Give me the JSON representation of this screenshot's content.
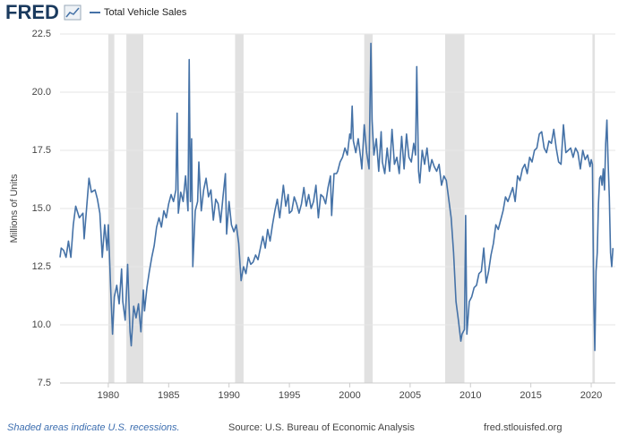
{
  "brand": "FRED",
  "footer": {
    "note": "Shaded areas indicate U.S. recessions.",
    "source": "Source: U.S. Bureau of Economic Analysis",
    "site": "fred.stlouisfed.org"
  },
  "chart_data": {
    "type": "line",
    "ylabel": "Millions of Units",
    "xlim": [
      1976,
      2022
    ],
    "ylim": [
      7.5,
      22.5
    ],
    "xticks": [
      1980,
      1985,
      1990,
      1995,
      2000,
      2005,
      2010,
      2015,
      2020
    ],
    "yticks": [
      7.5,
      {
        "value": 10,
        "label": "10.0"
      },
      12.5,
      {
        "value": 15,
        "label": "15.0"
      },
      17.5,
      {
        "value": 20,
        "label": "20.0"
      },
      22.5
    ],
    "grid": true,
    "recessions": [
      [
        1980.0,
        1980.5
      ],
      [
        1981.5,
        1982.9
      ],
      [
        1990.5,
        1991.2
      ],
      [
        2001.2,
        2001.9
      ],
      [
        2007.9,
        2009.5
      ],
      [
        2020.1,
        2020.3
      ]
    ],
    "recession_color": "#e1e1e1",
    "x": [
      1976.0,
      1976.1,
      1976.3,
      1976.5,
      1976.7,
      1976.9,
      1977.1,
      1977.3,
      1977.6,
      1977.9,
      1978.0,
      1978.2,
      1978.4,
      1978.6,
      1978.9,
      1979.1,
      1979.3,
      1979.5,
      1979.7,
      1979.9,
      1980.0,
      1980.2,
      1980.35,
      1980.5,
      1980.7,
      1980.9,
      1981.1,
      1981.2,
      1981.4,
      1981.6,
      1981.8,
      1981.9,
      1982.1,
      1982.3,
      1982.5,
      1982.7,
      1982.9,
      1983.0,
      1983.2,
      1983.4,
      1983.6,
      1983.8,
      1984.0,
      1984.2,
      1984.4,
      1984.6,
      1984.8,
      1985.0,
      1985.2,
      1985.4,
      1985.6,
      1985.7,
      1985.8,
      1986.0,
      1986.2,
      1986.4,
      1986.6,
      1986.7,
      1986.8,
      1986.9,
      1987.0,
      1987.2,
      1987.4,
      1987.5,
      1987.7,
      1987.9,
      1988.1,
      1988.3,
      1988.5,
      1988.7,
      1988.9,
      1989.1,
      1989.3,
      1989.5,
      1989.7,
      1989.8,
      1990.0,
      1990.2,
      1990.4,
      1990.6,
      1990.8,
      1991.0,
      1991.2,
      1991.4,
      1991.6,
      1991.8,
      1992.0,
      1992.2,
      1992.4,
      1992.6,
      1992.8,
      1993.0,
      1993.2,
      1993.4,
      1993.6,
      1993.8,
      1994.0,
      1994.2,
      1994.4,
      1994.5,
      1994.7,
      1994.9,
      1995.0,
      1995.2,
      1995.4,
      1995.6,
      1995.8,
      1996.0,
      1996.2,
      1996.4,
      1996.6,
      1996.8,
      1997.0,
      1997.2,
      1997.4,
      1997.6,
      1997.8,
      1998.0,
      1998.2,
      1998.4,
      1998.5,
      1998.7,
      1998.9,
      1999.0,
      1999.2,
      1999.4,
      1999.6,
      1999.8,
      2000.0,
      2000.1,
      2000.2,
      2000.3,
      2000.5,
      2000.7,
      2000.9,
      2001.0,
      2001.2,
      2001.4,
      2001.6,
      2001.75,
      2001.85,
      2002.0,
      2002.2,
      2002.4,
      2002.6,
      2002.7,
      2002.9,
      2003.1,
      2003.3,
      2003.5,
      2003.7,
      2003.9,
      2004.1,
      2004.3,
      2004.5,
      2004.7,
      2004.9,
      2005.1,
      2005.3,
      2005.45,
      2005.55,
      2005.7,
      2005.8,
      2006.0,
      2006.2,
      2006.4,
      2006.6,
      2006.8,
      2007.0,
      2007.2,
      2007.4,
      2007.6,
      2007.8,
      2008.0,
      2008.2,
      2008.4,
      2008.6,
      2008.8,
      2009.0,
      2009.2,
      2009.3,
      2009.5,
      2009.6,
      2009.7,
      2009.9,
      2010.1,
      2010.3,
      2010.5,
      2010.7,
      2010.9,
      2011.1,
      2011.3,
      2011.5,
      2011.7,
      2011.9,
      2012.1,
      2012.3,
      2012.5,
      2012.7,
      2012.9,
      2013.1,
      2013.3,
      2013.5,
      2013.7,
      2013.9,
      2014.1,
      2014.3,
      2014.5,
      2014.7,
      2014.9,
      2015.1,
      2015.3,
      2015.5,
      2015.7,
      2015.9,
      2016.1,
      2016.3,
      2016.5,
      2016.7,
      2016.9,
      2017.1,
      2017.3,
      2017.5,
      2017.7,
      2017.9,
      2018.1,
      2018.3,
      2018.5,
      2018.7,
      2018.9,
      2019.1,
      2019.3,
      2019.5,
      2019.7,
      2019.9,
      2020.0,
      2020.1,
      2020.2,
      2020.3,
      2020.4,
      2020.5,
      2020.6,
      2020.7,
      2020.8,
      2020.9,
      2021.0,
      2021.1,
      2021.2,
      2021.3,
      2021.4,
      2021.5,
      2021.6,
      2021.7,
      2021.8
    ],
    "series": [
      {
        "name": "Total Vehicle Sales",
        "color": "#4572a7",
        "values": [
          12.9,
          13.3,
          13.2,
          12.9,
          13.6,
          12.9,
          14.3,
          15.1,
          14.6,
          14.8,
          13.7,
          15.0,
          16.3,
          15.7,
          15.8,
          15.4,
          14.8,
          12.9,
          14.3,
          13.2,
          14.3,
          11.5,
          9.6,
          11.2,
          11.7,
          10.9,
          12.4,
          11.0,
          10.2,
          12.6,
          9.7,
          9.1,
          10.8,
          10.3,
          10.9,
          9.7,
          11.5,
          10.6,
          11.6,
          12.3,
          12.9,
          13.4,
          14.2,
          14.6,
          14.2,
          14.9,
          14.6,
          15.2,
          15.6,
          15.3,
          15.8,
          19.1,
          14.8,
          15.7,
          15.3,
          16.4,
          14.9,
          21.4,
          15.3,
          18.0,
          12.5,
          14.9,
          15.3,
          17.0,
          14.9,
          15.8,
          16.3,
          15.5,
          15.8,
          14.5,
          15.4,
          15.2,
          14.4,
          15.5,
          16.5,
          13.9,
          15.3,
          14.3,
          14.0,
          14.3,
          13.5,
          11.9,
          12.5,
          12.2,
          12.9,
          12.6,
          12.7,
          13.0,
          12.8,
          13.3,
          13.8,
          13.3,
          14.1,
          13.6,
          14.3,
          14.9,
          15.4,
          14.6,
          15.5,
          16.0,
          15.1,
          15.6,
          14.8,
          14.9,
          15.5,
          15.2,
          14.8,
          15.2,
          15.9,
          15.1,
          15.6,
          15.0,
          15.3,
          16.0,
          14.6,
          15.6,
          15.5,
          15.2,
          15.9,
          16.4,
          14.7,
          16.5,
          16.5,
          16.6,
          17.0,
          17.2,
          17.6,
          17.3,
          18.2,
          18.0,
          19.4,
          17.9,
          17.4,
          18.0,
          17.2,
          16.7,
          18.6,
          17.4,
          16.7,
          22.1,
          18.8,
          17.3,
          18.0,
          16.6,
          18.3,
          17.0,
          16.5,
          17.6,
          16.6,
          18.4,
          16.9,
          17.2,
          16.5,
          18.1,
          16.7,
          18.2,
          17.2,
          17.0,
          17.8,
          17.3,
          21.1,
          16.6,
          16.1,
          17.5,
          16.9,
          17.6,
          16.6,
          17.1,
          16.8,
          16.6,
          16.9,
          16.0,
          16.4,
          16.2,
          15.4,
          14.6,
          13.1,
          11.0,
          10.2,
          9.3,
          9.6,
          9.8,
          14.7,
          9.6,
          11.0,
          11.2,
          11.6,
          11.7,
          12.2,
          12.3,
          13.3,
          11.8,
          12.3,
          13.0,
          13.5,
          14.3,
          14.1,
          14.5,
          14.9,
          15.5,
          15.3,
          15.6,
          15.9,
          15.3,
          16.4,
          16.2,
          16.7,
          16.9,
          16.5,
          17.2,
          17.0,
          17.5,
          17.6,
          18.2,
          18.3,
          17.6,
          17.4,
          17.9,
          17.8,
          18.4,
          17.6,
          17.0,
          16.9,
          18.6,
          17.4,
          17.5,
          17.6,
          17.2,
          17.6,
          17.4,
          16.7,
          17.5,
          17.1,
          17.3,
          16.8,
          17.1,
          16.9,
          11.4,
          8.9,
          12.3,
          13.1,
          15.2,
          16.3,
          16.4,
          16.0,
          16.7,
          15.8,
          17.8,
          18.8,
          17.0,
          15.5,
          13.1,
          12.5,
          13.3
        ]
      }
    ]
  }
}
